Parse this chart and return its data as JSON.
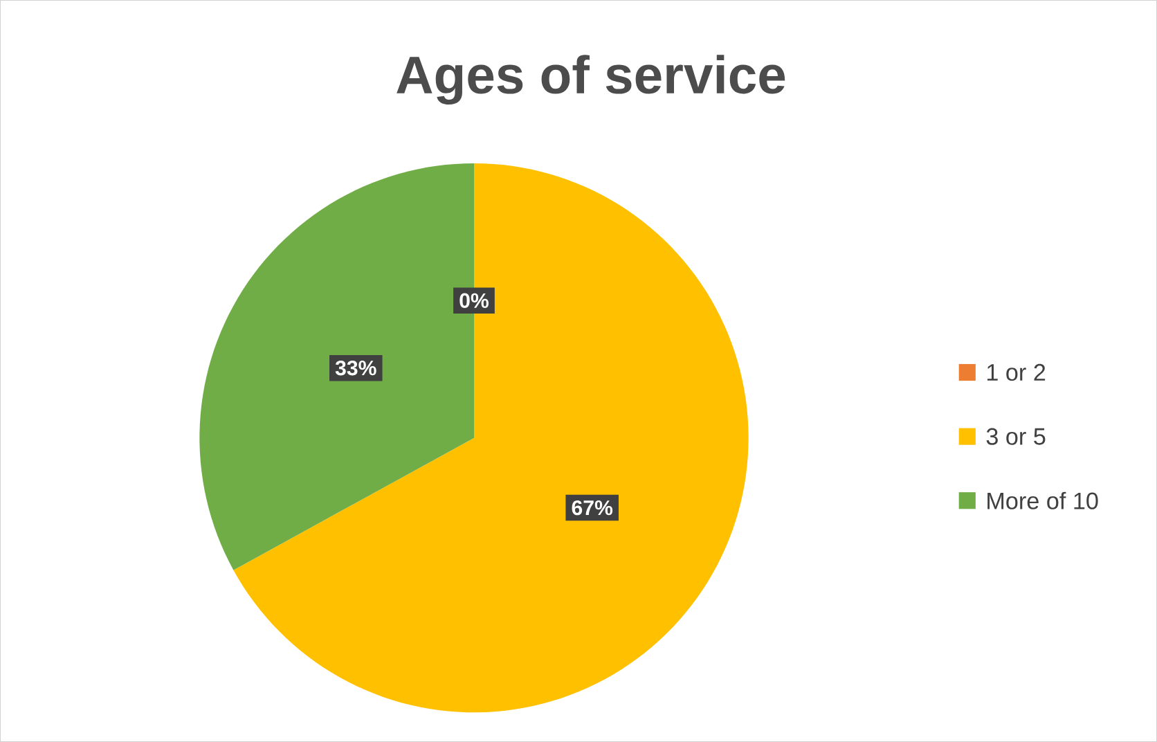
{
  "chart_data": {
    "type": "pie",
    "title": "Ages of service",
    "categories": [
      "1 or 2",
      "3 or 5",
      "More of 10"
    ],
    "values": [
      0,
      67,
      33
    ],
    "value_labels": [
      "0%",
      "67%",
      "33%"
    ],
    "colors": [
      "#ed7d31",
      "#ffc000",
      "#70ad47"
    ],
    "legend": "right"
  }
}
